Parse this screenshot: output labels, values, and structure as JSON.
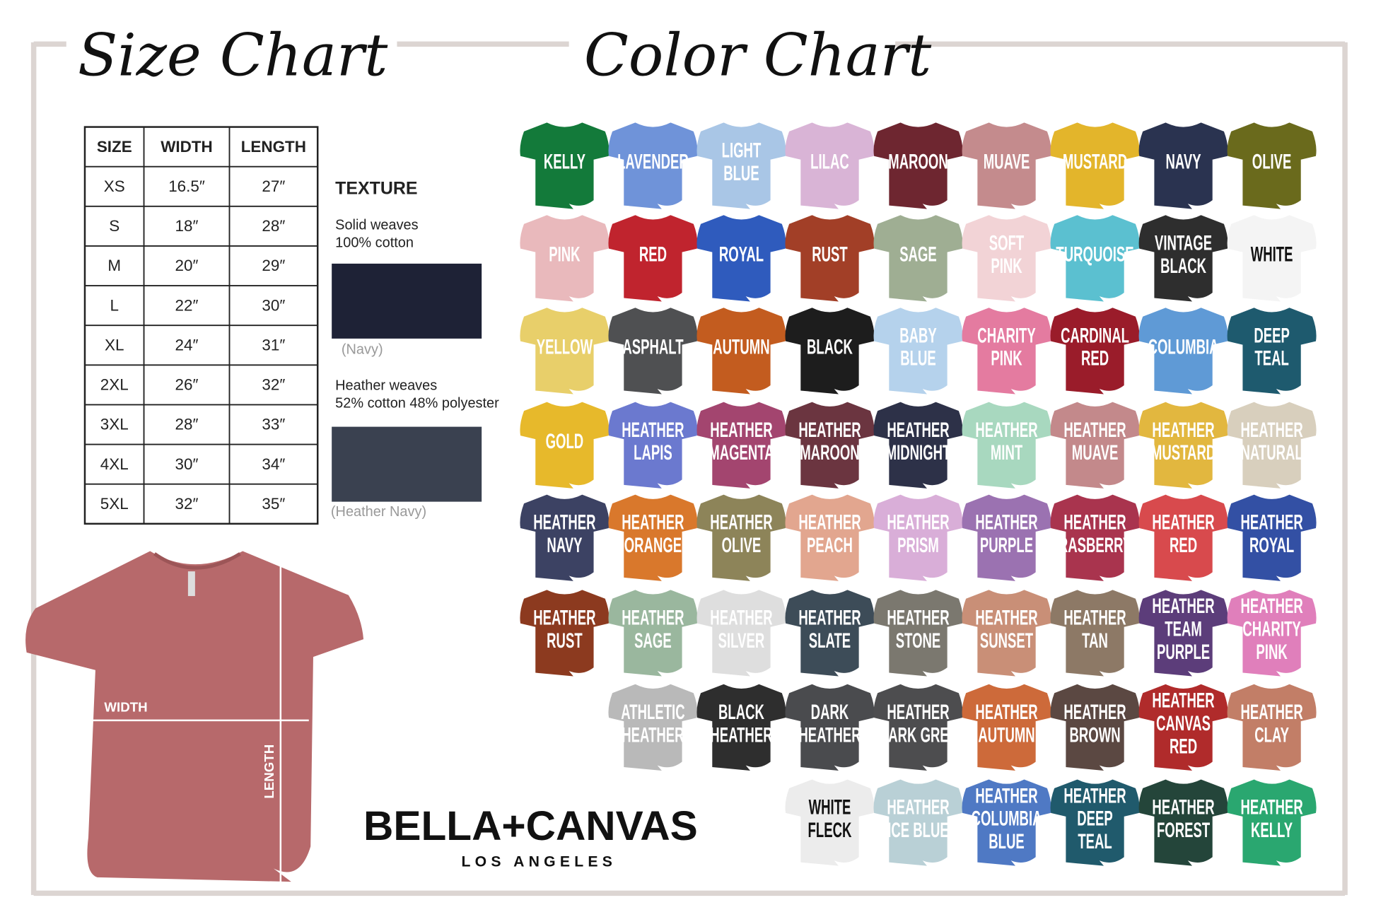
{
  "size_chart": {
    "title": "Size Chart",
    "table": {
      "header": [
        "SIZE",
        "WIDTH",
        "LENGTH"
      ],
      "rows": [
        [
          "XS",
          "16.5″",
          "27″"
        ],
        [
          "S",
          "18″",
          "28″"
        ],
        [
          "M",
          "20″",
          "29″"
        ],
        [
          "L",
          "22″",
          "30″"
        ],
        [
          "XL",
          "24″",
          "31″"
        ],
        [
          "2XL",
          "26″",
          "32″"
        ],
        [
          "3XL",
          "28″",
          "33″"
        ],
        [
          "4XL",
          "30″",
          "34″"
        ],
        [
          "5XL",
          "32″",
          "35″"
        ]
      ]
    },
    "texture": {
      "title": "TEXTURE",
      "solid_lines": [
        "Solid weaves",
        "100% cotton"
      ],
      "solid_caption": "(Navy)",
      "heather_lines": [
        "Heather weaves",
        "52% cotton 48% polyester"
      ],
      "heather_caption": "(Heather Navy)"
    },
    "diagram": {
      "width": "WIDTH",
      "length": "LENGTH"
    }
  },
  "brand": {
    "name": "BELLA+CANVAS",
    "city": "LOS ANGELES"
  },
  "color_chart": {
    "title": "Color Chart",
    "rows": [
      [
        {
          "lines": [
            "KELLY"
          ],
          "color": "#137a3a"
        },
        {
          "lines": [
            "LAVENDER"
          ],
          "color": "#6f93d9"
        },
        {
          "lines": [
            "LIGHT",
            "BLUE"
          ],
          "color": "#a9c6e6"
        },
        {
          "lines": [
            "LILAC"
          ],
          "color": "#d9b4d6"
        },
        {
          "lines": [
            "MAROON"
          ],
          "color": "#6e2630"
        },
        {
          "lines": [
            "MUAVE"
          ],
          "color": "#c48b8d"
        },
        {
          "lines": [
            "MUSTARD"
          ],
          "color": "#e3b52b"
        },
        {
          "lines": [
            "NAVY"
          ],
          "color": "#2a3350"
        },
        {
          "lines": [
            "OLIVE"
          ],
          "color": "#6a6a1c"
        }
      ],
      [
        {
          "lines": [
            "PINK"
          ],
          "color": "#e9b9bc"
        },
        {
          "lines": [
            "RED"
          ],
          "color": "#c0242e"
        },
        {
          "lines": [
            "ROYAL"
          ],
          "color": "#2f5bbd"
        },
        {
          "lines": [
            "RUST"
          ],
          "color": "#a23f27"
        },
        {
          "lines": [
            "SAGE"
          ],
          "color": "#9fae93"
        },
        {
          "lines": [
            "SOFT",
            "PINK"
          ],
          "color": "#f2d3d6"
        },
        {
          "lines": [
            "TURQUOISE"
          ],
          "color": "#5bc0d0"
        },
        {
          "lines": [
            "VINTAGE",
            "BLACK"
          ],
          "color": "#2e2e2e"
        },
        {
          "lines": [
            "WHITE"
          ],
          "color": "#f4f4f4"
        }
      ],
      [
        {
          "lines": [
            "YELLOW"
          ],
          "color": "#e8cf6a"
        },
        {
          "lines": [
            "ASPHALT"
          ],
          "color": "#4f5052"
        },
        {
          "lines": [
            "AUTUMN"
          ],
          "color": "#c35c1f"
        },
        {
          "lines": [
            "BLACK"
          ],
          "color": "#1d1d1d"
        },
        {
          "lines": [
            "BABY",
            "BLUE"
          ],
          "color": "#b5d2ec"
        },
        {
          "lines": [
            "CHARITY",
            "PINK"
          ],
          "color": "#e47ba0"
        },
        {
          "lines": [
            "CARDINAL",
            "RED"
          ],
          "color": "#9a1c2a"
        },
        {
          "lines": [
            "COLUMBIA"
          ],
          "color": "#5f9ad6"
        },
        {
          "lines": [
            "DEEP",
            "TEAL"
          ],
          "color": "#1e5a6e"
        }
      ],
      [
        {
          "lines": [
            "GOLD"
          ],
          "color": "#e7b92b"
        },
        {
          "lines": [
            "HEATHER",
            "LAPIS"
          ],
          "color": "#6b79cf"
        },
        {
          "lines": [
            "HEATHER",
            "MAGENTA"
          ],
          "color": "#a3456f"
        },
        {
          "lines": [
            "HEATHER",
            "MAROON"
          ],
          "color": "#6b3540"
        },
        {
          "lines": [
            "HEATHER",
            "MIDNIGHT"
          ],
          "color": "#2d3148"
        },
        {
          "lines": [
            "HEATHER",
            "MINT"
          ],
          "color": "#a8d8bf"
        },
        {
          "lines": [
            "HEATHER",
            "MUAVE"
          ],
          "color": "#c3898b"
        },
        {
          "lines": [
            "HEATHER",
            "MUSTARD"
          ],
          "color": "#e2b73f"
        },
        {
          "lines": [
            "HEATHER",
            "NATURAL"
          ],
          "color": "#d8cfbd"
        }
      ],
      [
        {
          "lines": [
            "HEATHER",
            "NAVY"
          ],
          "color": "#3c4263"
        },
        {
          "lines": [
            "HEATHER",
            "ORANGE"
          ],
          "color": "#d9782c"
        },
        {
          "lines": [
            "HEATHER",
            "OLIVE"
          ],
          "color": "#8d8459"
        },
        {
          "lines": [
            "HEATHER",
            "PEACH"
          ],
          "color": "#e2a68f"
        },
        {
          "lines": [
            "HEATHER",
            "PRISM"
          ],
          "color": "#d9aed8"
        },
        {
          "lines": [
            "HEATHER",
            "PURPLE"
          ],
          "color": "#9b72b1"
        },
        {
          "lines": [
            "HEATHER",
            "RASBERRY"
          ],
          "color": "#a9344e"
        },
        {
          "lines": [
            "HEATHER",
            "RED"
          ],
          "color": "#d84a4d"
        },
        {
          "lines": [
            "HEATHER",
            "ROYAL"
          ],
          "color": "#3350a4"
        }
      ],
      [
        {
          "lines": [
            "HEATHER",
            "RUST"
          ],
          "color": "#8c3a1f"
        },
        {
          "lines": [
            "HEATHER",
            "SAGE"
          ],
          "color": "#9ab79e"
        },
        {
          "lines": [
            "HEATHER",
            "SILVER"
          ],
          "color": "#dedede"
        },
        {
          "lines": [
            "HEATHER",
            "SLATE"
          ],
          "color": "#3d4c58"
        },
        {
          "lines": [
            "HEATHER",
            "STONE"
          ],
          "color": "#7b786f"
        },
        {
          "lines": [
            "HEATHER",
            "SUNSET"
          ],
          "color": "#c98f77"
        },
        {
          "lines": [
            "HEATHER",
            "TAN"
          ],
          "color": "#8d7966"
        },
        {
          "lines": [
            "HEATHER",
            "TEAM",
            "PURPLE"
          ],
          "color": "#5c3d7a"
        },
        {
          "lines": [
            "HEATHER",
            "CHARITY",
            "PINK"
          ],
          "color": "#e07fbb"
        }
      ],
      [
        {
          "lines": [
            "ATHLETIC",
            "HEATHER"
          ],
          "color": "#b9b9b9"
        },
        {
          "lines": [
            "BLACK",
            "HEATHER"
          ],
          "color": "#2e2e2e"
        },
        {
          "lines": [
            "DARK",
            "HEATHER"
          ],
          "color": "#4a4b4e"
        },
        {
          "lines": [
            "HEATHER",
            "DARK GREY"
          ],
          "color": "#4d4d4f"
        },
        {
          "lines": [
            "HEATHER",
            "AUTUMN"
          ],
          "color": "#cd6a3a"
        },
        {
          "lines": [
            "HEATHER",
            "BROWN"
          ],
          "color": "#5b4842"
        },
        {
          "lines": [
            "HEATHER",
            "CANVAS",
            "RED"
          ],
          "color": "#b02b2b"
        },
        {
          "lines": [
            "HEATHER",
            "CLAY"
          ],
          "color": "#c27e67"
        }
      ],
      [
        {
          "lines": [
            "WHITE",
            "FLECK"
          ],
          "color": "#ececec"
        },
        {
          "lines": [
            "HEATHER",
            "ICE BLUE"
          ],
          "color": "#b9d0d6"
        },
        {
          "lines": [
            "HEATHER",
            "COLUMBIA",
            "BLUE"
          ],
          "color": "#4f79c4"
        },
        {
          "lines": [
            "HEATHER",
            "DEEP",
            "TEAL"
          ],
          "color": "#205a6c"
        },
        {
          "lines": [
            "HEATHER",
            "FOREST"
          ],
          "color": "#24453a"
        },
        {
          "lines": [
            "HEATHER",
            "KELLY"
          ],
          "color": "#2aa770"
        }
      ]
    ]
  }
}
